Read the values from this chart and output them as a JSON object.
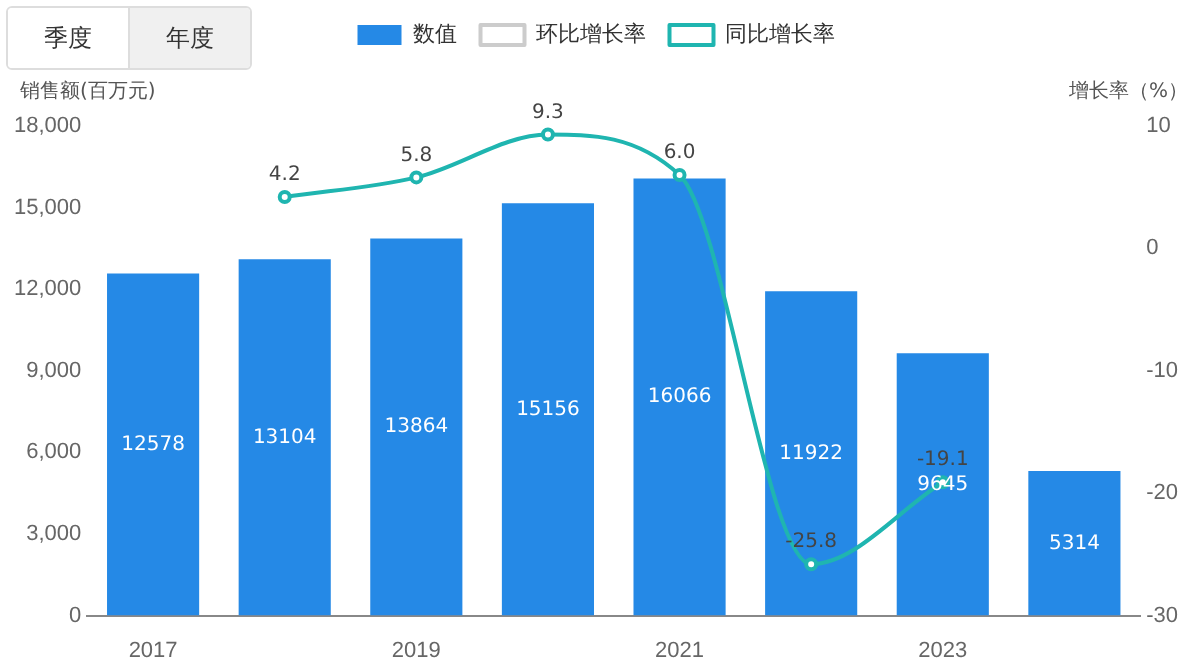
{
  "chart_data": {
    "type": "bar",
    "categories": [
      "2017",
      null,
      "2019",
      null,
      "2021",
      null,
      "2023",
      null
    ],
    "ylabel": "销售额(百万元)",
    "y2label": "增长率（%）",
    "annotations": [
      "季度",
      "年度"
    ],
    "series": [
      {
        "name": "数值",
        "color": "#2589e6",
        "values": [
          12578,
          13104,
          13864,
          15156,
          16066,
          11922,
          9645,
          5314
        ],
        "value_labels": [
          "12578",
          "13104",
          "13864",
          "15156",
          "16066",
          "11922",
          "9645",
          "5314"
        ]
      },
      {
        "name": "环比增长率",
        "type": "line",
        "color": "#cccccc",
        "axis": "y2",
        "values": [
          null,
          null,
          null,
          null,
          null,
          null,
          null,
          null
        ]
      },
      {
        "name": "同比增长率",
        "type": "line",
        "color": "#1fb5b0",
        "axis": "y2",
        "values": [
          null,
          4.2,
          5.8,
          9.3,
          6.0,
          -25.8,
          -19.1,
          null
        ],
        "value_labels": [
          null,
          "4.2",
          "5.8",
          "9.3",
          "6.0",
          "-25.8",
          "-19.1",
          null
        ]
      }
    ],
    "ylim": [
      0,
      18000
    ],
    "yticks": [
      0,
      {
        "value": 3000,
        "label": "3,000"
      },
      {
        "value": 6000,
        "label": "6,000"
      },
      {
        "value": 9000,
        "label": "9,000"
      },
      {
        "value": 12000,
        "label": "12,000"
      },
      {
        "value": 15000,
        "label": "15,000"
      },
      {
        "value": 18000,
        "label": "18,000"
      }
    ],
    "y2lim": [
      -30,
      10
    ],
    "y2ticks": [
      -30,
      -20,
      -10,
      0,
      10
    ],
    "grid": false,
    "legend": "top",
    "marker": "circle"
  }
}
